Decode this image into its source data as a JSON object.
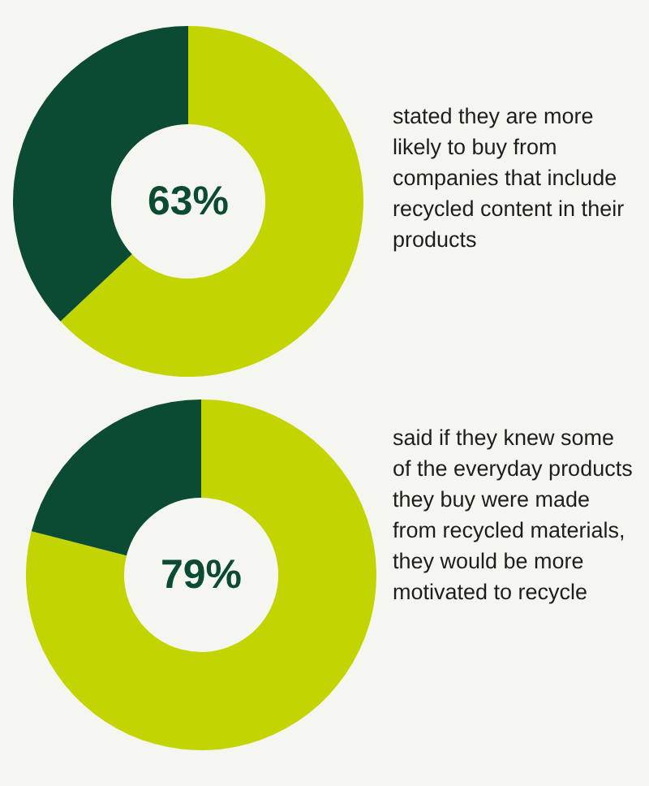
{
  "chart_data": [
    {
      "type": "donut",
      "categories": [
        null,
        null
      ],
      "values": [
        63,
        37
      ],
      "colors": [
        "#c2d500",
        "#0b4a33"
      ],
      "value_labels": [
        "63%",
        null
      ],
      "annotations": [
        "stated they are more likely to buy from companies that include recycled content in their products"
      ]
    },
    {
      "type": "donut",
      "categories": [
        null,
        null
      ],
      "values": [
        79,
        21
      ],
      "colors": [
        "#c2d500",
        "#0b4a33"
      ],
      "value_labels": [
        "79%",
        null
      ],
      "annotations": [
        "said if they knew some of the everyday products they buy were made from recycled materials, they would be more motivated to recycle"
      ]
    }
  ]
}
